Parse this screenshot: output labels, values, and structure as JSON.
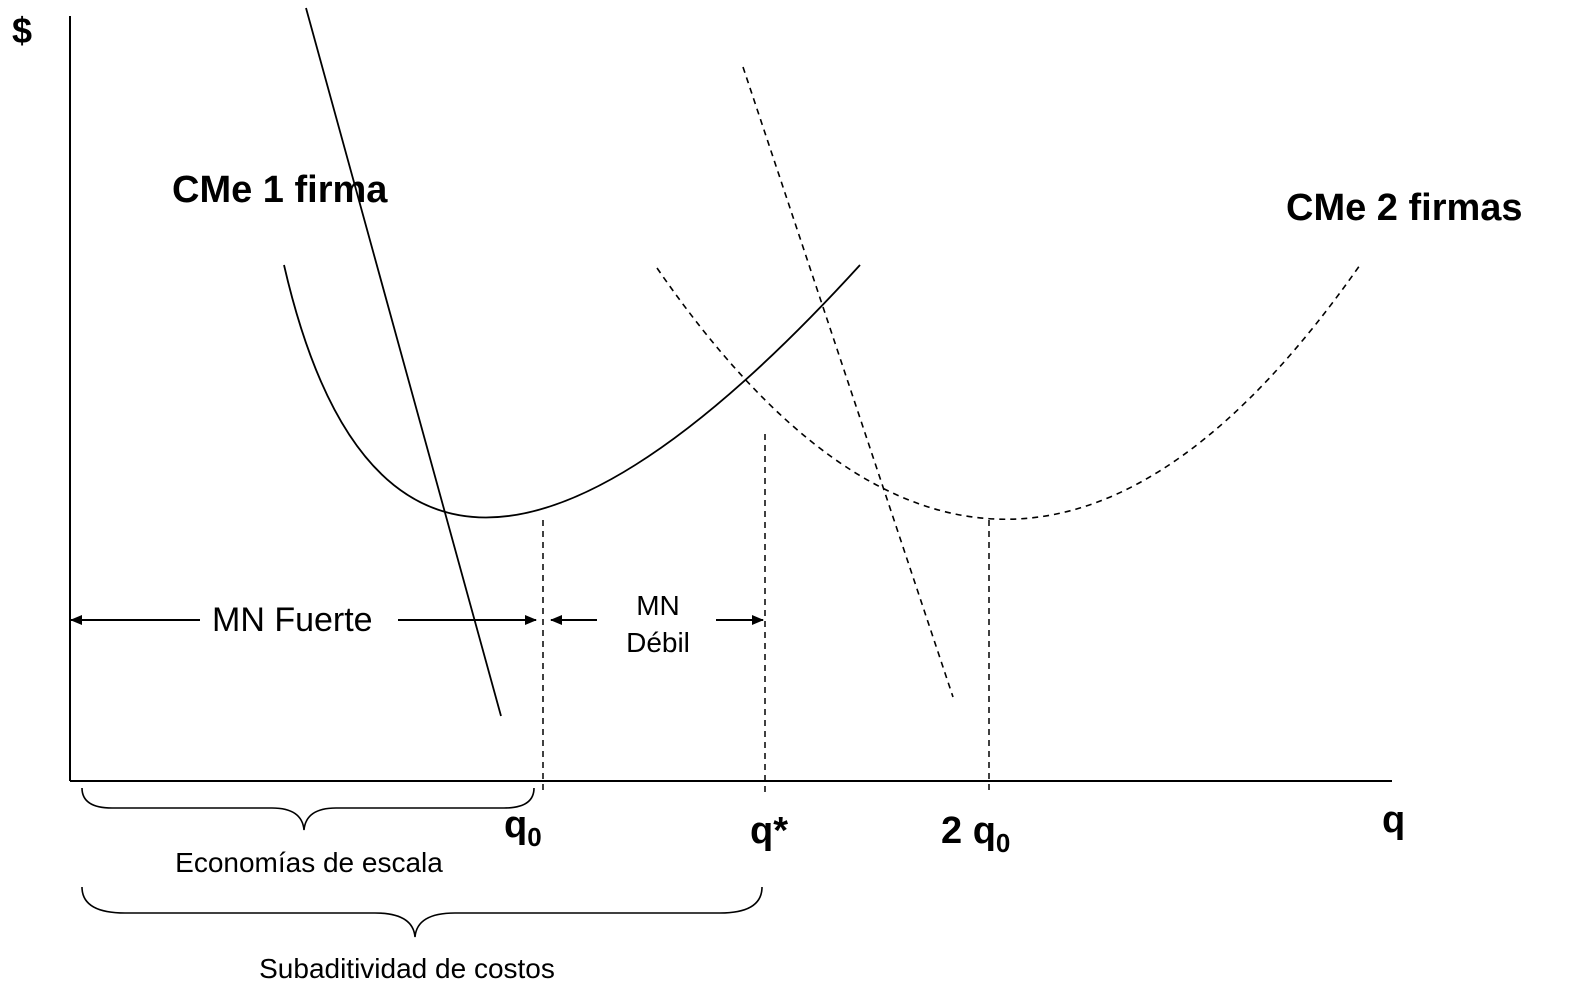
{
  "axes": {
    "y_label": "$",
    "x_label": "q"
  },
  "curves": {
    "cme_1_firma": "CMe 1 firma",
    "cme_2_firmas": "CMe 2 firmas"
  },
  "ticks": {
    "q0": {
      "base": "q",
      "sub": "0"
    },
    "qstar": "q*",
    "two_q0": {
      "prefix": "2 q",
      "sub": "0"
    }
  },
  "regions": {
    "mn_fuerte": "MN Fuerte",
    "mn_debil_line1": "MN",
    "mn_debil_line2": "Débil"
  },
  "braces": {
    "economias": "Economías de escala",
    "subaditividad": "Subaditividad de costos"
  }
}
